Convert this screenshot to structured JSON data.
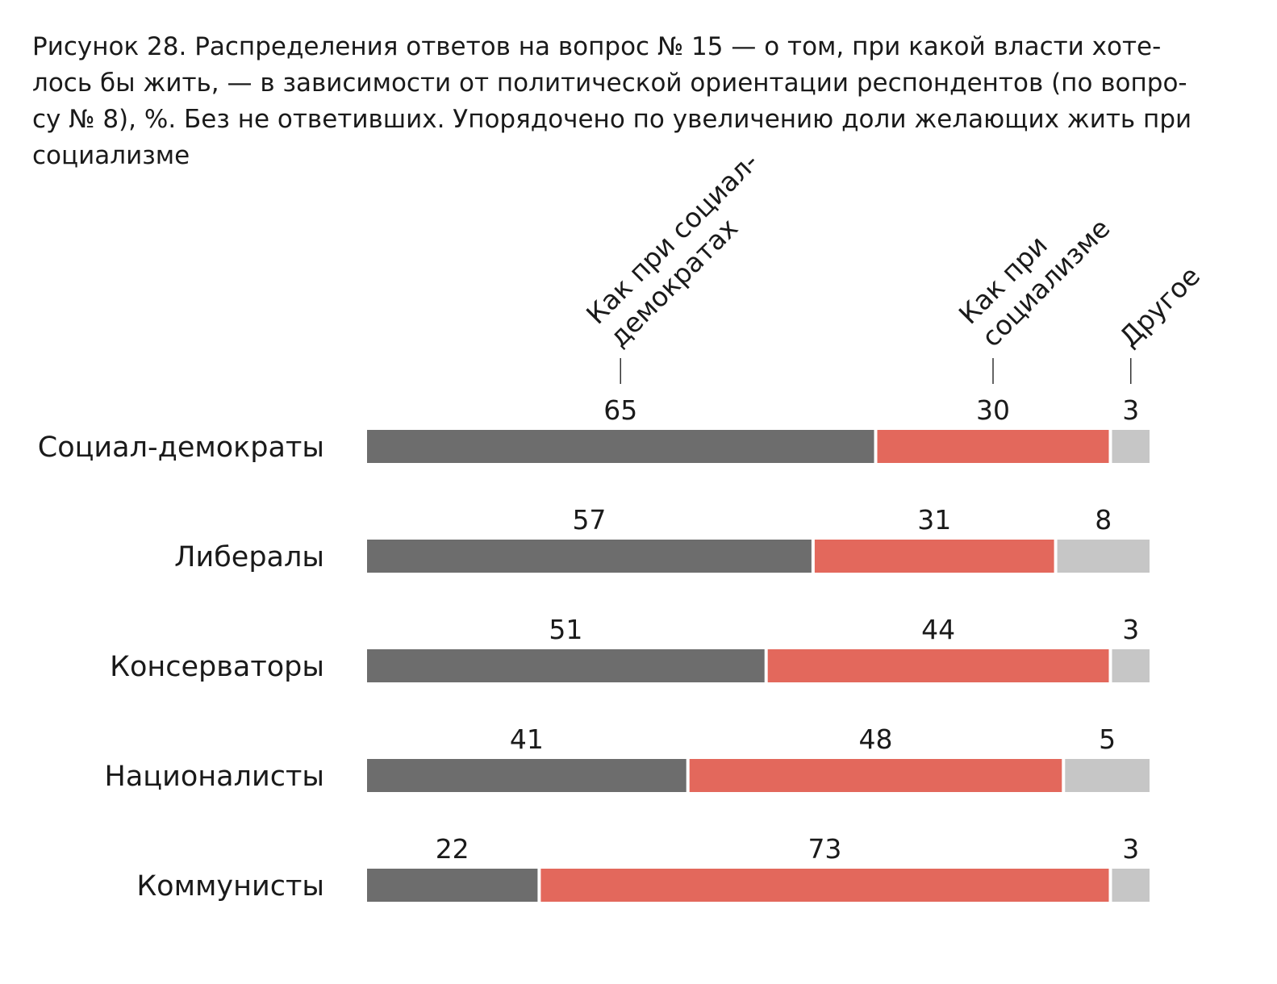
{
  "title_lines": [
    "Рисунок 28. Распределения ответов на вопрос № 15 — о том, при какой власти хоте-",
    "лось бы жить, — в зависимости от политической ориентации респондентов (по вопро-",
    "су № 8), %. Без не ответивших. Упорядочено по увеличению доли желающих жить при",
    "социализме"
  ],
  "chart_data": {
    "type": "bar",
    "orientation": "horizontal",
    "stacked": true,
    "title": "Рисунок 28. Распределения ответов на вопрос № 15 — о том, при какой власти хотелось бы жить, — в зависимости от политической ориентации респондентов (по вопросу № 8), %. Без не ответивших. Упорядочено по увеличению доли желающих жить при социализме",
    "unit": "%",
    "categories": [
      "Социал-демократы",
      "Либералы",
      "Консерваторы",
      "Националисты",
      "Коммунисты"
    ],
    "series": [
      {
        "name": "Как при социал-демократах",
        "label_lines": [
          "Как при социал-",
          "демократах"
        ],
        "color": "#6d6d6d",
        "values": [
          65,
          57,
          51,
          41,
          22
        ]
      },
      {
        "name": "Как при социализме",
        "label_lines": [
          "Как при",
          "социализме"
        ],
        "color": "#e3685c",
        "values": [
          30,
          31,
          44,
          48,
          73
        ]
      },
      {
        "name": "Другое",
        "label_lines": [
          "Другое"
        ],
        "color": "#c6c6c6",
        "values": [
          3,
          8,
          3,
          5,
          3
        ]
      }
    ],
    "xlim": [
      0,
      100
    ],
    "grid": false,
    "legend": "rotated labels above the first bar"
  }
}
